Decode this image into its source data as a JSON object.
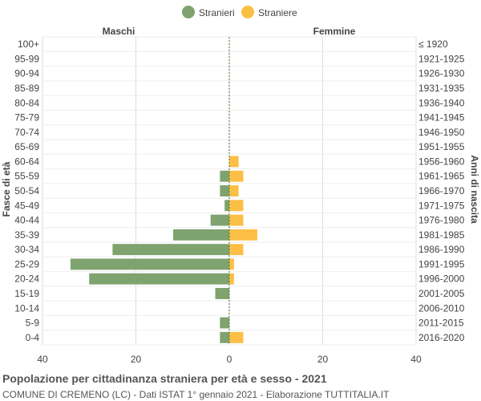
{
  "chart_data": {
    "type": "bar",
    "orientation": "horizontal",
    "title": "Popolazione per cittadinanza straniera per età e sesso - 2021",
    "subtitle": "COMUNE DI CREMENO (LC) - Dati ISTAT 1° gennaio 2021 - Elaborazione TUTTITALIA.IT",
    "left_header": "Maschi",
    "right_header": "Femmine",
    "ylabel_left": "Fasce di età",
    "ylabel_right": "Anni di nascita",
    "xlim": [
      -40,
      40
    ],
    "x_ticks": [
      -40,
      -20,
      0,
      20,
      40
    ],
    "x_tick_labels": [
      "40",
      "20",
      "0",
      "20",
      "40"
    ],
    "grid": true,
    "legend_position": "top-center",
    "categories": [
      "100+",
      "95-99",
      "90-94",
      "85-89",
      "80-84",
      "75-79",
      "70-74",
      "65-69",
      "60-64",
      "55-59",
      "50-54",
      "45-49",
      "40-44",
      "35-39",
      "30-34",
      "25-29",
      "20-24",
      "15-19",
      "10-14",
      "5-9",
      "0-4"
    ],
    "birth_years": [
      "≤ 1920",
      "1921-1925",
      "1926-1930",
      "1931-1935",
      "1936-1940",
      "1941-1945",
      "1946-1950",
      "1951-1955",
      "1956-1960",
      "1961-1965",
      "1966-1970",
      "1971-1975",
      "1976-1980",
      "1981-1985",
      "1986-1990",
      "1991-1995",
      "1996-2000",
      "2001-2005",
      "2006-2010",
      "2011-2015",
      "2016-2020"
    ],
    "series": [
      {
        "name": "Stranieri",
        "color": "#7fa36f",
        "values": [
          0,
          0,
          0,
          0,
          0,
          0,
          0,
          0,
          0,
          2,
          2,
          1,
          4,
          12,
          25,
          34,
          30,
          3,
          0,
          2,
          2
        ]
      },
      {
        "name": "Straniere",
        "color": "#fbbf45",
        "values": [
          0,
          0,
          0,
          0,
          0,
          0,
          0,
          0,
          2,
          3,
          2,
          3,
          3,
          6,
          3,
          1,
          1,
          0,
          0,
          0,
          3
        ]
      }
    ]
  }
}
